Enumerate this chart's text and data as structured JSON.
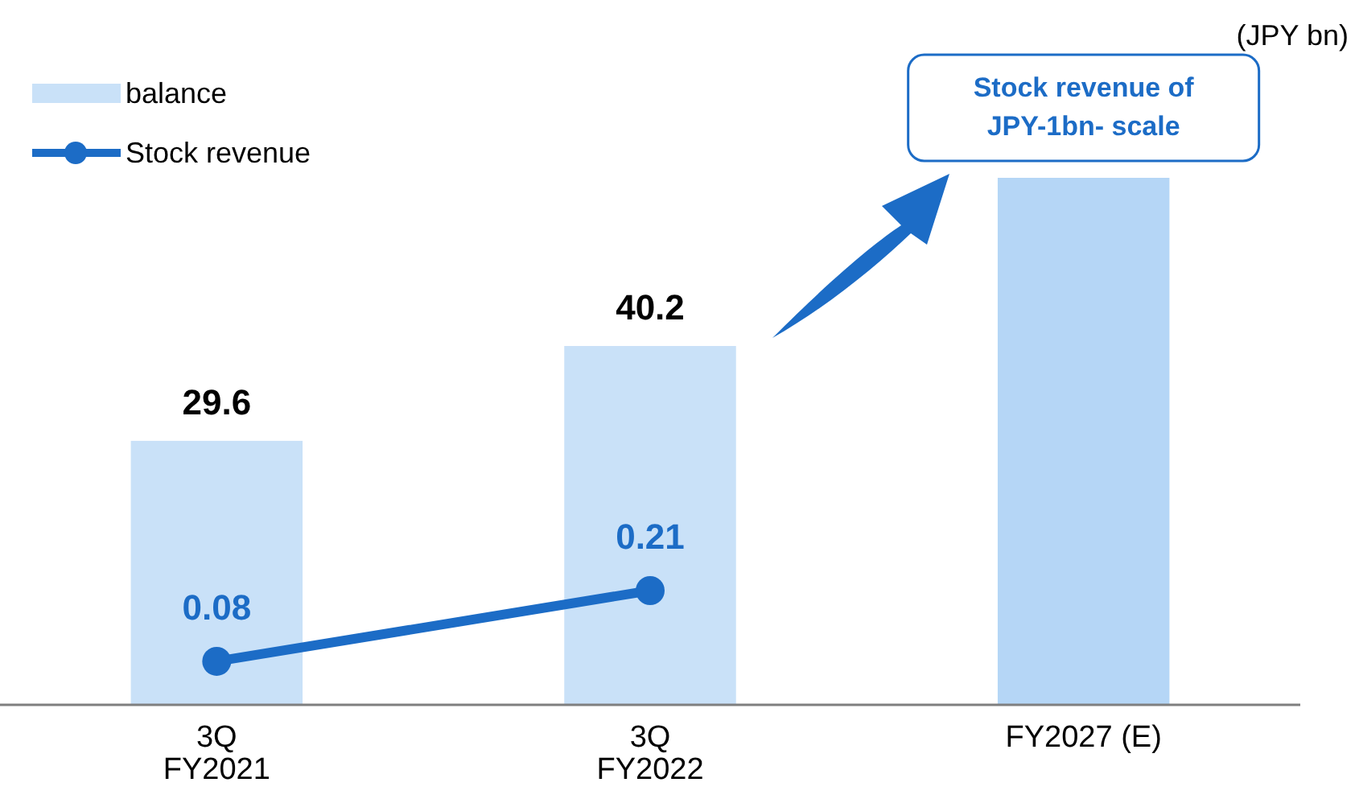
{
  "chart_data": {
    "type": "bar",
    "categories": [
      "3Q\nFY2021",
      "3Q\nFY2022",
      "FY2027 (E)"
    ],
    "series": [
      {
        "name": "balance",
        "color": "#c9e1f8",
        "colors": [
          "#c9e1f8",
          "#c9e1f8",
          "#b5d6f6"
        ],
        "values": [
          29.6,
          40.2,
          59
        ],
        "value_labels": [
          "29.6",
          "40.2",
          null
        ]
      },
      {
        "name": "Stock revenue",
        "type": "line",
        "axis": "y2",
        "color": "#1c6cc6",
        "values": [
          0.08,
          0.21,
          null
        ],
        "value_labels": [
          "0.08",
          "0.21",
          null
        ]
      }
    ],
    "tick_labels": "x",
    "grid": false,
    "legend": "top left",
    "marker": "circle",
    "line_style": "solid",
    "annotations": [
      "(JPY bn)",
      "Stock revenue of JPY-1bn- scale"
    ]
  }
}
